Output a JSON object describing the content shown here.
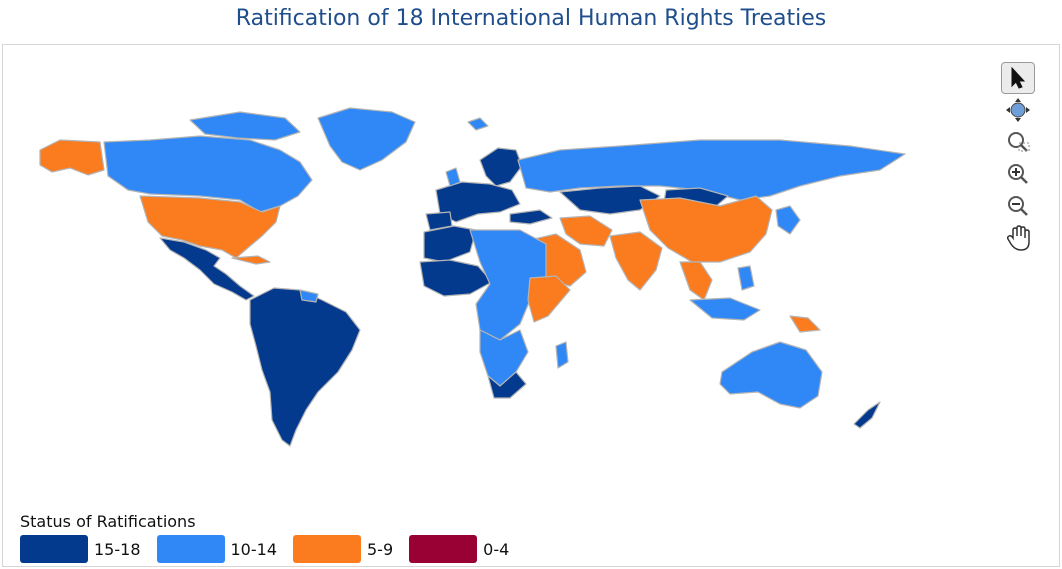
{
  "title": "Ratification of 18 International Human Rights Treaties",
  "legend": {
    "title": "Status of Ratifications",
    "items": [
      {
        "label": "15-18",
        "color": "#033a8e"
      },
      {
        "label": "10-14",
        "color": "#2f88f5"
      },
      {
        "label": "5-9",
        "color": "#fb7b1f"
      },
      {
        "label": "0-4",
        "color": "#990033"
      }
    ]
  },
  "colors": {
    "border": "#b4b4b4",
    "title": "#1f4e8c"
  },
  "toolbar": [
    {
      "name": "select-arrow-icon",
      "active": true
    },
    {
      "name": "pan-navigator-icon",
      "active": false
    },
    {
      "name": "zoom-selection-icon",
      "active": false
    },
    {
      "name": "zoom-in-icon",
      "active": false
    },
    {
      "name": "zoom-out-icon",
      "active": false
    },
    {
      "name": "hand-pan-icon",
      "active": false
    }
  ]
}
